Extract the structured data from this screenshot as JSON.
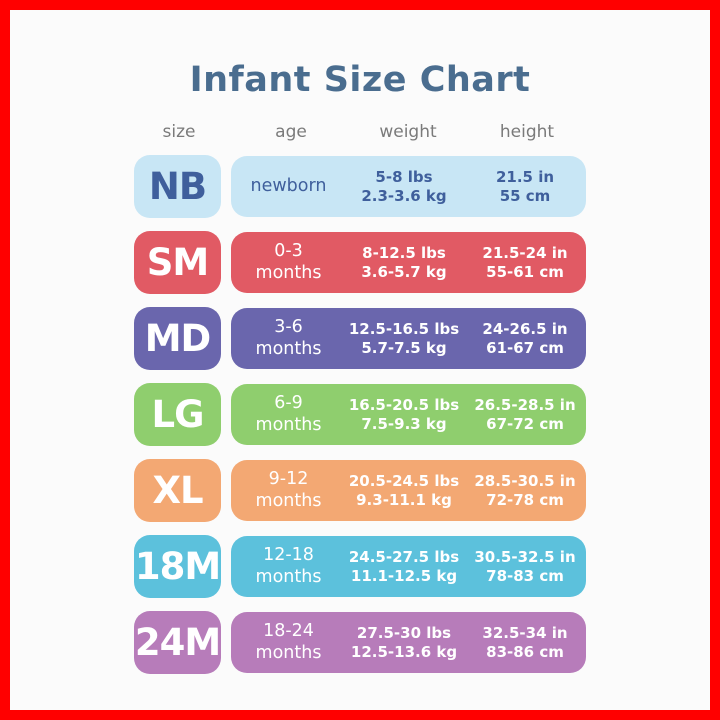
{
  "title": "Infant Size Chart",
  "headers": {
    "size": "size",
    "age": "age",
    "weight": "weight",
    "height": "height"
  },
  "rows": [
    {
      "size": "NB",
      "age1": "newborn",
      "age2": "",
      "weight1": "5-8 lbs",
      "weight2": "2.3-3.6 kg",
      "height1": "21.5 in",
      "height2": "55 cm",
      "color": "#c8e6f5"
    },
    {
      "size": "SM",
      "age1": "0-3",
      "age2": "months",
      "weight1": "8-12.5 lbs",
      "weight2": "3.6-5.7 kg",
      "height1": "21.5-24 in",
      "height2": "55-61 cm",
      "color": "#e15a64"
    },
    {
      "size": "MD",
      "age1": "3-6",
      "age2": "months",
      "weight1": "12.5-16.5 lbs",
      "weight2": "5.7-7.5 kg",
      "height1": "24-26.5 in",
      "height2": "61-67 cm",
      "color": "#6a66ad"
    },
    {
      "size": "LG",
      "age1": "6-9",
      "age2": "months",
      "weight1": "16.5-20.5 lbs",
      "weight2": "7.5-9.3 kg",
      "height1": "26.5-28.5 in",
      "height2": "67-72 cm",
      "color": "#8fce6e"
    },
    {
      "size": "XL",
      "age1": "9-12",
      "age2": "months",
      "weight1": "20.5-24.5 lbs",
      "weight2": "9.3-11.1 kg",
      "height1": "28.5-30.5 in",
      "height2": "72-78 cm",
      "color": "#f3a873"
    },
    {
      "size": "18M",
      "age1": "12-18",
      "age2": "months",
      "weight1": "24.5-27.5 lbs",
      "weight2": "11.1-12.5 kg",
      "height1": "30.5-32.5 in",
      "height2": "78-83 cm",
      "color": "#5cc1dc"
    },
    {
      "size": "24M",
      "age1": "18-24",
      "age2": "months",
      "weight1": "27.5-30 lbs",
      "weight2": "12.5-13.6 kg",
      "height1": "32.5-34 in",
      "height2": "83-86 cm",
      "color": "#b77cba"
    }
  ]
}
